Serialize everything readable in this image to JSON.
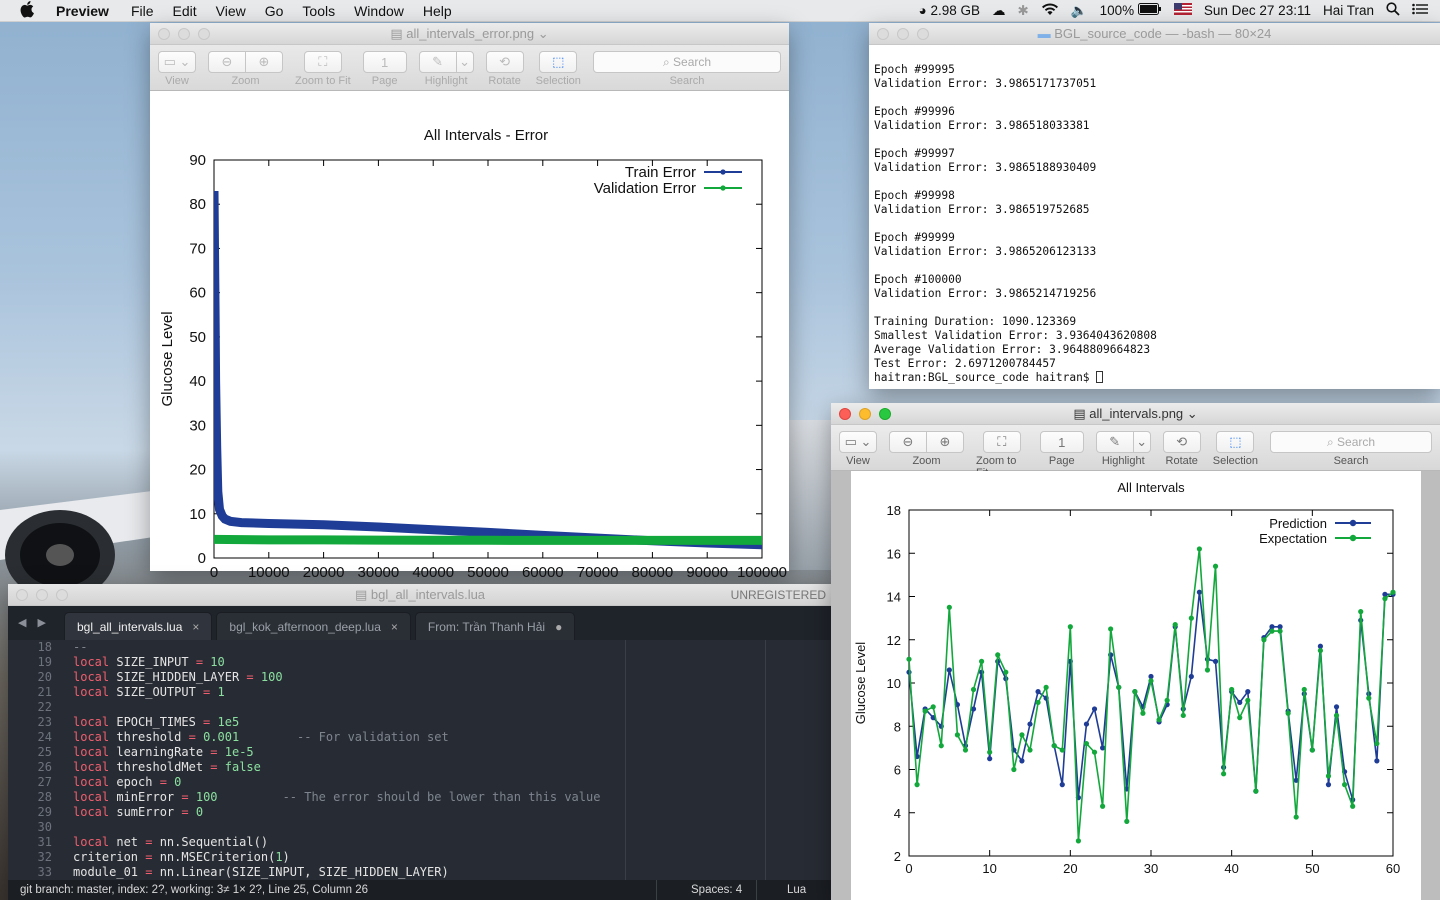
{
  "menubar": {
    "app_name": "Preview",
    "items": [
      "File",
      "Edit",
      "View",
      "Go",
      "Tools",
      "Window",
      "Help"
    ],
    "memory": "2.98 GB",
    "battery": "100%",
    "datetime": "Sun Dec 27  23:11",
    "user": "Hai Tran"
  },
  "preview_toolbar": {
    "view": "View",
    "zoom": "Zoom",
    "zoom_to_fit": "Zoom to Fit",
    "page": "Page",
    "page_value": "1",
    "highlight": "Highlight",
    "rotate": "Rotate",
    "selection": "Selection",
    "search_placeholder": "Search",
    "search": "Search"
  },
  "error_window": {
    "title": "all_intervals_error.png",
    "chart_title": "All Intervals - Error"
  },
  "intervals_window": {
    "title": "all_intervals.png",
    "chart_title": "All Intervals"
  },
  "terminal": {
    "title": "BGL_source_code — -bash — 80×24",
    "lines": [
      "",
      "Epoch #99995",
      "Validation Error: 3.9865171737051",
      "",
      "Epoch #99996",
      "Validation Error: 3.986518033381",
      "",
      "Epoch #99997",
      "Validation Error: 3.9865188930409",
      "",
      "Epoch #99998",
      "Validation Error: 3.986519752685",
      "",
      "Epoch #99999",
      "Validation Error: 3.9865206123133",
      "",
      "Epoch #100000",
      "Validation Error: 3.9865214719256",
      "",
      "Training Duration: 1090.123369",
      "Smallest Validation Error: 3.9364043620808",
      "Average Validation Error: 3.9648809664823",
      "Test Error: 2.6971200784457"
    ],
    "prompt": "haitran:BGL_source_code haitran$ "
  },
  "editor": {
    "title": "bgl_all_intervals.lua",
    "unregistered": "UNREGISTERED",
    "tabs": [
      {
        "label": "bgl_all_intervals.lua",
        "close": "×"
      },
      {
        "label": "bgl_kok_afternoon_deep.lua",
        "close": "×"
      },
      {
        "label": "From: Trần Thanh Hải",
        "close": "●"
      }
    ],
    "first_line_number": 18,
    "status_left": "git branch: master, index: 2?, working: 3≠ 1× 2?, Line 25, Column 26",
    "status_spaces": "Spaces: 4",
    "status_lang": "Lua"
  },
  "colors": {
    "train_blue": "#1f3d96",
    "valid_green": "#13a83c",
    "lua_keyword": "#ef5f6f",
    "lua_number": "#8be0a0"
  },
  "chart_data": [
    {
      "type": "line",
      "title": "All Intervals - Error",
      "xlabel": "",
      "ylabel": "Glucose Level",
      "xlim": [
        0,
        100000
      ],
      "ylim": [
        0,
        90
      ],
      "xticks": [
        0,
        10000,
        20000,
        30000,
        40000,
        50000,
        60000,
        70000,
        80000,
        90000,
        100000
      ],
      "yticks": [
        0,
        10,
        20,
        30,
        40,
        50,
        60,
        70,
        80,
        90
      ],
      "legend": "top-right",
      "series": [
        {
          "name": "Train Error",
          "color": "#1f3d96",
          "x": [
            0,
            100,
            200,
            300,
            500,
            700,
            1000,
            1500,
            2000,
            3000,
            5000,
            10000,
            20000,
            30000,
            40000,
            50000,
            60000,
            70000,
            80000,
            90000,
            100000
          ],
          "y": [
            83,
            70,
            55,
            40,
            25,
            15,
            11,
            9.5,
            8.8,
            8.3,
            8.0,
            7.8,
            7.5,
            7.0,
            6.4,
            5.8,
            5.1,
            4.5,
            3.9,
            3.4,
            3.0
          ]
        },
        {
          "name": "Validation Error",
          "color": "#13a83c",
          "x": [
            0,
            10000,
            20000,
            30000,
            40000,
            50000,
            60000,
            70000,
            80000,
            90000,
            100000
          ],
          "y": [
            4.2,
            4.1,
            4.1,
            4.05,
            4.02,
            4.0,
            3.99,
            3.99,
            3.99,
            3.99,
            3.99
          ]
        }
      ]
    },
    {
      "type": "line",
      "title": "All Intervals",
      "xlabel": "",
      "ylabel": "Glucose Level",
      "xlim": [
        0,
        60
      ],
      "ylim": [
        2,
        18
      ],
      "xticks": [
        0,
        10,
        20,
        30,
        40,
        50,
        60
      ],
      "yticks": [
        2,
        4,
        6,
        8,
        10,
        12,
        14,
        16,
        18
      ],
      "legend": "top-right",
      "series": [
        {
          "name": "Prediction",
          "color": "#1f3d96",
          "x": [
            0,
            1,
            2,
            3,
            4,
            5,
            6,
            7,
            8,
            9,
            10,
            11,
            12,
            13,
            14,
            15,
            16,
            17,
            18,
            19,
            20,
            21,
            22,
            23,
            24,
            25,
            26,
            27,
            28,
            29,
            30,
            31,
            32,
            33,
            34,
            35,
            36,
            37,
            38,
            39,
            40,
            41,
            42,
            43,
            44,
            45,
            46,
            47,
            48,
            49,
            50,
            51,
            52,
            53,
            54,
            55,
            56,
            57,
            58,
            59,
            60
          ],
          "y": [
            10.5,
            6.6,
            8.8,
            8.4,
            8.0,
            10.6,
            9.0,
            7.1,
            8.8,
            10.5,
            6.5,
            11.0,
            10.2,
            6.9,
            6.4,
            8.1,
            9.6,
            9.3,
            7.1,
            5.3,
            11.0,
            4.7,
            8.1,
            8.8,
            7.0,
            11.3,
            9.8,
            5.1,
            9.6,
            8.9,
            10.3,
            8.2,
            9.0,
            12.6,
            8.8,
            10.3,
            14.2,
            11.1,
            11.0,
            6.1,
            9.6,
            9.1,
            9.6,
            5.0,
            12.1,
            12.6,
            12.6,
            8.7,
            5.5,
            9.5,
            6.9,
            11.7,
            5.3,
            8.9,
            5.9,
            4.6,
            12.9,
            9.5,
            6.4,
            14.1,
            14.1
          ]
        },
        {
          "name": "Expectation",
          "color": "#13a83c",
          "x": [
            0,
            1,
            2,
            3,
            4,
            5,
            6,
            7,
            8,
            9,
            10,
            11,
            12,
            13,
            14,
            15,
            16,
            17,
            18,
            19,
            20,
            21,
            22,
            23,
            24,
            25,
            26,
            27,
            28,
            29,
            30,
            31,
            32,
            33,
            34,
            35,
            36,
            37,
            38,
            39,
            40,
            41,
            42,
            43,
            44,
            45,
            46,
            47,
            48,
            49,
            50,
            51,
            52,
            53,
            54,
            55,
            56,
            57,
            58,
            59,
            60
          ],
          "y": [
            11.1,
            5.3,
            8.7,
            8.9,
            7.1,
            13.5,
            7.6,
            6.9,
            9.7,
            11.0,
            6.8,
            11.3,
            10.5,
            6.0,
            7.6,
            6.9,
            9.1,
            9.8,
            7.1,
            6.9,
            12.6,
            2.7,
            7.2,
            6.8,
            4.3,
            12.5,
            9.8,
            3.6,
            9.6,
            8.6,
            10.1,
            8.3,
            9.2,
            12.7,
            8.5,
            13.0,
            16.2,
            10.6,
            15.4,
            5.8,
            9.7,
            8.4,
            9.2,
            5.0,
            12.0,
            12.4,
            12.4,
            8.6,
            3.8,
            9.7,
            6.9,
            11.5,
            5.7,
            8.5,
            5.3,
            4.3,
            13.3,
            9.3,
            7.2,
            13.9,
            14.2
          ]
        }
      ]
    }
  ]
}
